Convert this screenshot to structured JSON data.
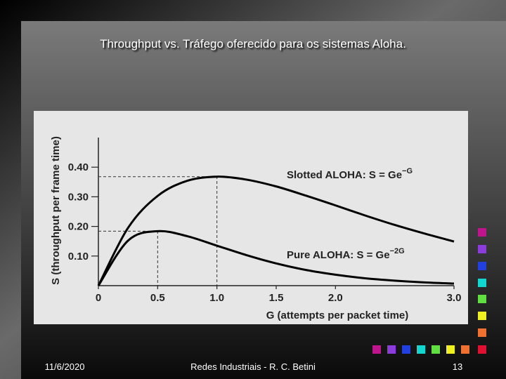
{
  "slide": {
    "title": "Throughput vs. Tráfego oferecido para os sistemas Aloha.",
    "footer": {
      "date": "11/6/2020",
      "center": "Redes Industriais - R. C. Betini",
      "page": "13"
    }
  },
  "chart_data": {
    "type": "line",
    "x_label": "G (attempts per packet time)",
    "y_label": "S (throughput per frame time)",
    "x": [
      0,
      0.25,
      0.5,
      0.75,
      1.0,
      1.25,
      1.5,
      1.75,
      2.0,
      2.25,
      2.5,
      2.75,
      3.0
    ],
    "series": [
      {
        "name": "Slotted ALOHA: S = Ge",
        "superscript": "−G",
        "color": "#000000",
        "values": [
          0,
          0.195,
          0.303,
          0.354,
          0.368,
          0.358,
          0.335,
          0.304,
          0.271,
          0.237,
          0.205,
          0.176,
          0.149
        ]
      },
      {
        "name": "Pure ALOHA: S = Ge",
        "superscript": "−2G",
        "color": "#000000",
        "values": [
          0,
          0.152,
          0.184,
          0.167,
          0.135,
          0.103,
          0.075,
          0.053,
          0.037,
          0.025,
          0.017,
          0.011,
          0.007
        ]
      }
    ],
    "reference_lines": [
      {
        "x": 1.0,
        "y": 0.368
      },
      {
        "x": 0.5,
        "y": 0.184
      }
    ],
    "xlim": [
      0,
      3.0
    ],
    "ylim": [
      0,
      0.5
    ],
    "xticks": [
      0,
      0.5,
      {
        "value": 1,
        "label": "1.0"
      },
      1.5,
      {
        "value": 2,
        "label": "2.0"
      },
      {
        "value": 3,
        "label": "3.0"
      }
    ],
    "yticks": [
      {
        "value": 0.1,
        "label": "0.10"
      },
      {
        "value": 0.2,
        "label": "0.20"
      },
      {
        "value": 0.3,
        "label": "0.30"
      },
      {
        "value": 0.4,
        "label": "0.40"
      }
    ]
  }
}
